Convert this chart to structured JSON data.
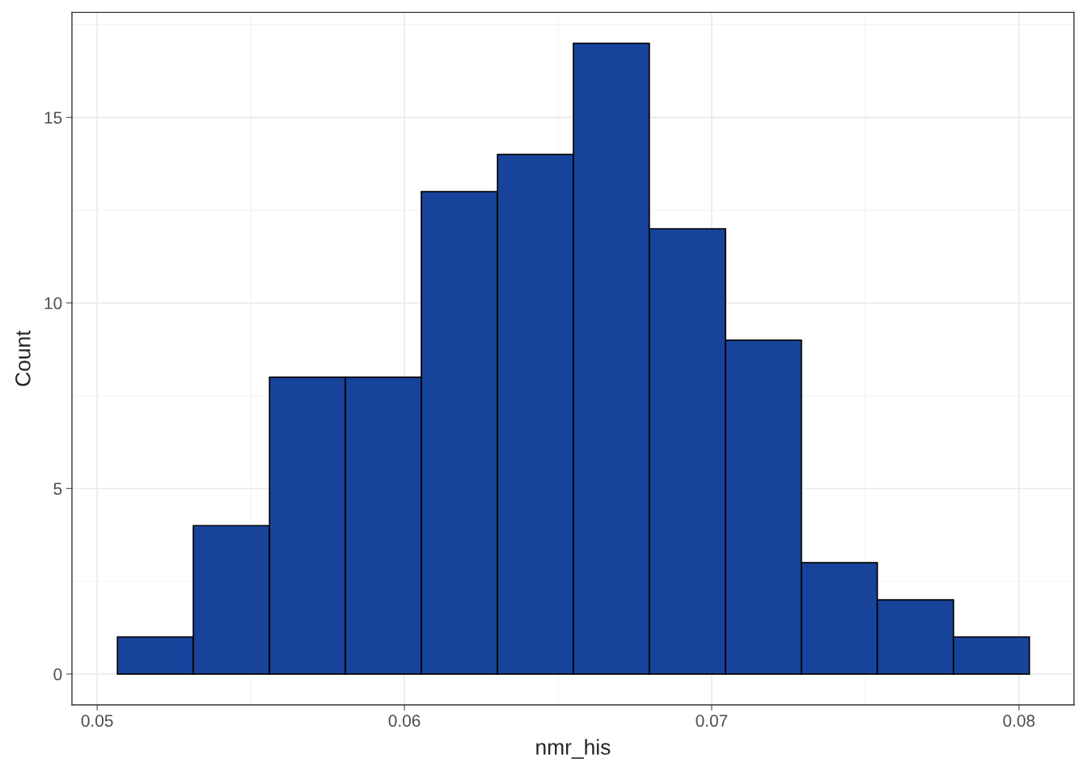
{
  "chart_data": {
    "type": "histogram",
    "xlabel": "nmr_his",
    "ylabel": "Count",
    "bins": [
      0.05066,
      0.05313,
      0.05561,
      0.05808,
      0.06055,
      0.06303,
      0.0655,
      0.06797,
      0.07045,
      0.07292,
      0.07539,
      0.07787,
      0.08034
    ],
    "values": [
      1,
      4,
      8,
      8,
      13,
      14,
      17,
      12,
      9,
      3,
      2,
      1
    ],
    "color": "#18439a",
    "xlim": [
      0.04918,
      0.08179
    ],
    "ylim": [
      -0.83,
      17.83
    ],
    "xticks": [
      0.05,
      0.06,
      0.07,
      0.08
    ],
    "yticks": [
      0,
      5,
      10,
      15
    ],
    "grid": true
  }
}
